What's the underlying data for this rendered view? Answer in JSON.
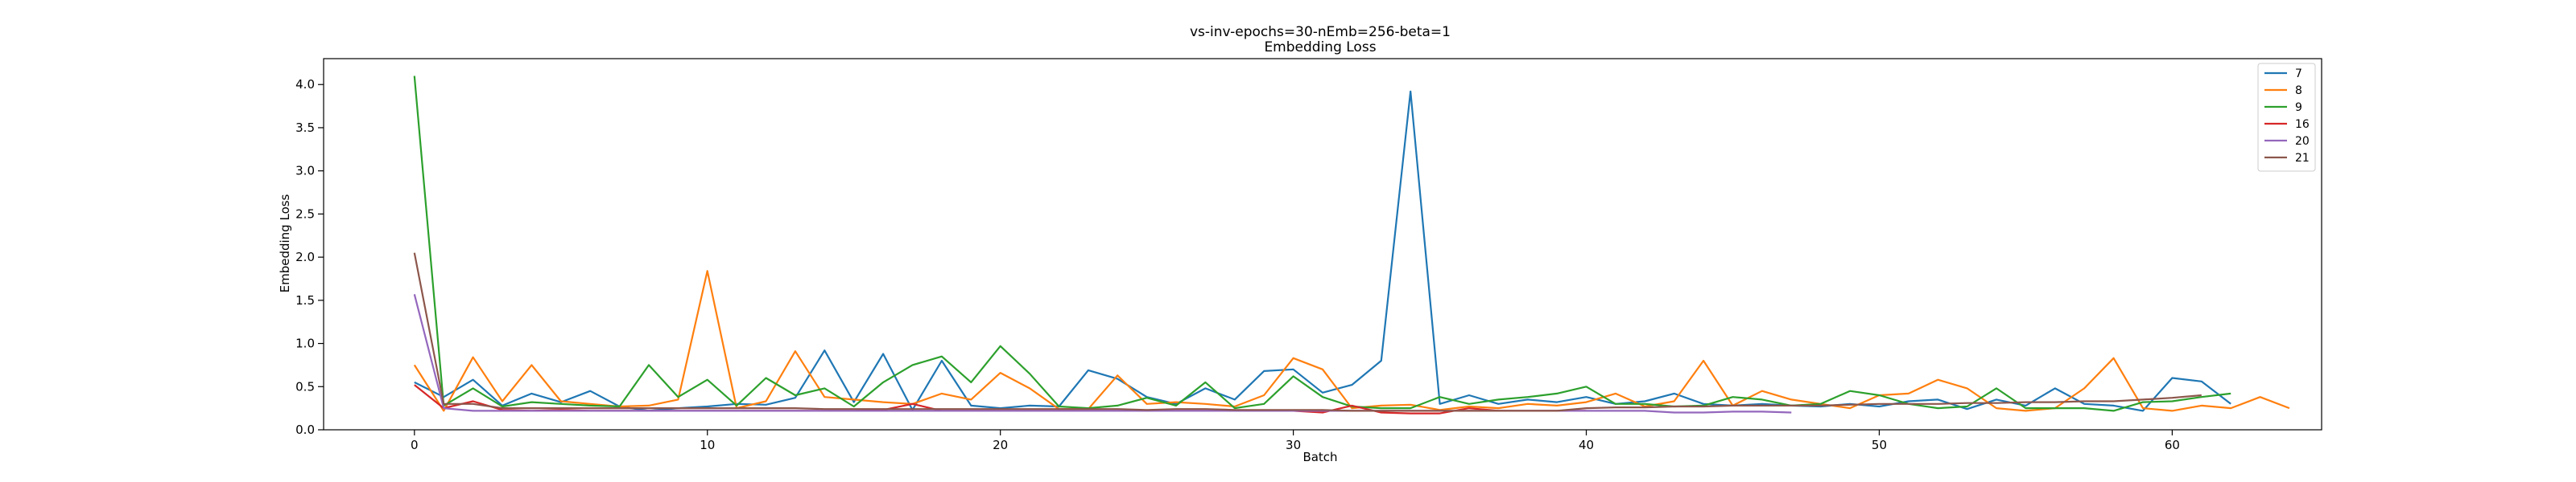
{
  "chart_data": {
    "type": "line",
    "title": "vs-inv-epochs=30-nEmb=256-beta=1",
    "subtitle": "Embedding Loss",
    "xlabel": "Batch",
    "ylabel": "Embedding Loss",
    "xlim": [
      -3.1,
      65.1
    ],
    "ylim": [
      0,
      4.3
    ],
    "xticks": [
      0,
      10,
      20,
      30,
      40,
      50,
      60
    ],
    "yticks": [
      0.0,
      0.5,
      1.0,
      1.5,
      2.0,
      2.5,
      3.0,
      3.5,
      4.0
    ],
    "grid": false,
    "legend_position": "top-right",
    "series": [
      {
        "name": "7",
        "color": "#1f77b4",
        "values": [
          0.55,
          0.38,
          0.58,
          0.28,
          0.42,
          0.32,
          0.45,
          0.27,
          0.22,
          0.25,
          0.27,
          0.3,
          0.29,
          0.37,
          0.92,
          0.32,
          0.88,
          0.23,
          0.8,
          0.28,
          0.25,
          0.28,
          0.27,
          0.69,
          0.59,
          0.38,
          0.3,
          0.48,
          0.35,
          0.68,
          0.7,
          0.43,
          0.52,
          0.8,
          3.92,
          0.3,
          0.4,
          0.3,
          0.35,
          0.32,
          0.38,
          0.3,
          0.33,
          0.42,
          0.3,
          0.28,
          0.3,
          0.28,
          0.27,
          0.3,
          0.27,
          0.33,
          0.35,
          0.24,
          0.35,
          0.28,
          0.48,
          0.3,
          0.28,
          0.22,
          0.6,
          0.56,
          0.3
        ]
      },
      {
        "name": "8",
        "color": "#ff7f0e",
        "values": [
          0.75,
          0.22,
          0.84,
          0.33,
          0.75,
          0.33,
          0.3,
          0.27,
          0.28,
          0.35,
          1.84,
          0.25,
          0.33,
          0.91,
          0.38,
          0.35,
          0.32,
          0.3,
          0.42,
          0.35,
          0.66,
          0.48,
          0.24,
          0.24,
          0.63,
          0.3,
          0.32,
          0.3,
          0.27,
          0.4,
          0.83,
          0.7,
          0.25,
          0.28,
          0.29,
          0.23,
          0.27,
          0.25,
          0.3,
          0.28,
          0.32,
          0.42,
          0.27,
          0.33,
          0.8,
          0.28,
          0.45,
          0.35,
          0.3,
          0.25,
          0.4,
          0.42,
          0.58,
          0.48,
          0.25,
          0.22,
          0.25,
          0.48,
          0.83,
          0.25,
          0.22,
          0.28,
          0.25,
          0.38,
          0.25
        ]
      },
      {
        "name": "9",
        "color": "#2ca02c",
        "values": [
          4.1,
          0.28,
          0.48,
          0.27,
          0.32,
          0.3,
          0.28,
          0.27,
          0.75,
          0.38,
          0.58,
          0.28,
          0.6,
          0.4,
          0.48,
          0.27,
          0.55,
          0.75,
          0.85,
          0.55,
          0.97,
          0.65,
          0.27,
          0.25,
          0.28,
          0.37,
          0.28,
          0.55,
          0.25,
          0.3,
          0.62,
          0.38,
          0.27,
          0.25,
          0.25,
          0.38,
          0.3,
          0.35,
          0.38,
          0.42,
          0.5,
          0.3,
          0.3,
          0.27,
          0.28,
          0.38,
          0.35,
          0.28,
          0.3,
          0.45,
          0.4,
          0.3,
          0.25,
          0.27,
          0.48,
          0.25,
          0.25,
          0.25,
          0.22,
          0.32,
          0.33,
          0.38,
          0.42
        ]
      },
      {
        "name": "16",
        "color": "#d62728",
        "values": [
          0.52,
          0.25,
          0.33,
          0.23,
          0.22,
          0.23,
          0.22,
          0.22,
          0.22,
          0.22,
          0.22,
          0.22,
          0.22,
          0.22,
          0.22,
          0.22,
          0.23,
          0.3,
          0.22,
          0.22,
          0.22,
          0.22,
          0.22,
          0.22,
          0.22,
          0.22,
          0.22,
          0.22,
          0.22,
          0.22,
          0.22,
          0.2,
          0.28,
          0.2,
          0.19,
          0.19,
          0.25,
          0.22,
          0.22,
          0.22,
          0.22
        ]
      },
      {
        "name": "20",
        "color": "#9467bd",
        "values": [
          1.57,
          0.25,
          0.22,
          0.22,
          0.22,
          0.22,
          0.22,
          0.22,
          0.22,
          0.22,
          0.22,
          0.22,
          0.22,
          0.22,
          0.22,
          0.22,
          0.22,
          0.22,
          0.22,
          0.22,
          0.22,
          0.22,
          0.22,
          0.22,
          0.22,
          0.22,
          0.22,
          0.22,
          0.22,
          0.22,
          0.22,
          0.22,
          0.22,
          0.22,
          0.22,
          0.22,
          0.22,
          0.22,
          0.22,
          0.22,
          0.22,
          0.22,
          0.22,
          0.2,
          0.2,
          0.21,
          0.21,
          0.2
        ]
      },
      {
        "name": "21",
        "color": "#8c564b",
        "values": [
          2.05,
          0.3,
          0.3,
          0.25,
          0.25,
          0.25,
          0.25,
          0.25,
          0.25,
          0.25,
          0.25,
          0.25,
          0.25,
          0.25,
          0.24,
          0.24,
          0.24,
          0.24,
          0.24,
          0.24,
          0.24,
          0.24,
          0.24,
          0.24,
          0.24,
          0.23,
          0.24,
          0.24,
          0.23,
          0.23,
          0.23,
          0.23,
          0.22,
          0.22,
          0.22,
          0.22,
          0.22,
          0.22,
          0.22,
          0.22,
          0.25,
          0.26,
          0.26,
          0.27,
          0.27,
          0.28,
          0.28,
          0.28,
          0.28,
          0.29,
          0.3,
          0.3,
          0.3,
          0.31,
          0.31,
          0.32,
          0.32,
          0.33,
          0.33,
          0.35,
          0.37,
          0.4
        ]
      }
    ]
  }
}
